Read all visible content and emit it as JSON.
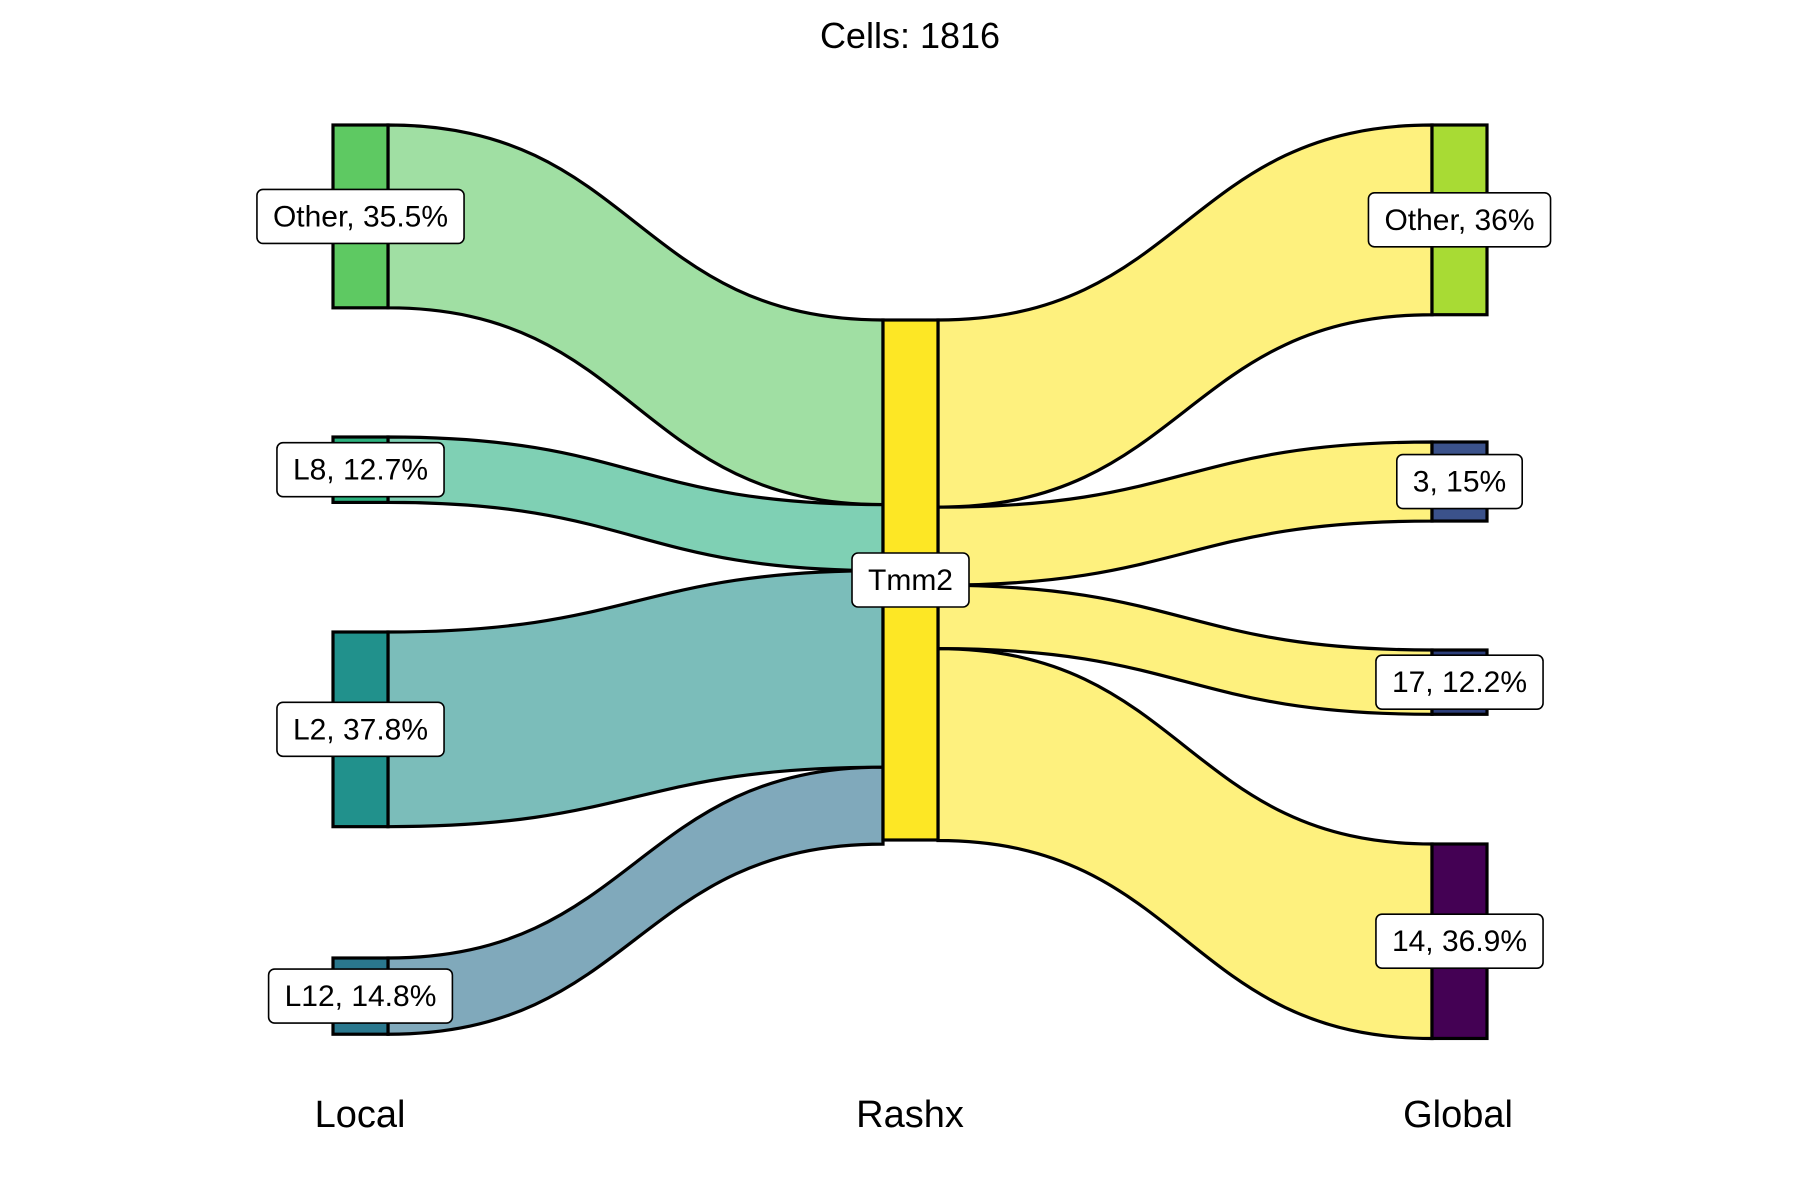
{
  "chart_data": {
    "type": "sankey",
    "title": "Cells:  1816",
    "axes": [
      "Local",
      "Rashx",
      "Global"
    ],
    "total": 1816,
    "center_node": {
      "label": "Tmm2",
      "color": "#FDE725"
    },
    "left_nodes": [
      {
        "label": "Other, 35.5%",
        "percent": 35.5,
        "color": "#5EC962",
        "flow_color": "#A0DFA3"
      },
      {
        "label": "L8, 12.7%",
        "percent": 12.7,
        "color": "#2CB17E",
        "flow_color": "#7FD0B4"
      },
      {
        "label": "L2, 37.8%",
        "percent": 37.8,
        "color": "#21918C",
        "flow_color": "#7BBDBA"
      },
      {
        "label": "L12, 14.8%",
        "percent": 14.8,
        "color": "#2A788E",
        "flow_color": "#80A9BB"
      }
    ],
    "right_nodes": [
      {
        "label": "Other, 36%",
        "percent": 36.0,
        "color": "#A8DB34"
      },
      {
        "label": "3, 15%",
        "percent": 15.0,
        "color": "#3B528B"
      },
      {
        "label": "17, 12.2%",
        "percent": 12.2,
        "color": "#2C3E7A"
      },
      {
        "label": "14, 36.9%",
        "percent": 36.9,
        "color": "#440154"
      }
    ],
    "right_flow_color": "#FEF17E"
  }
}
